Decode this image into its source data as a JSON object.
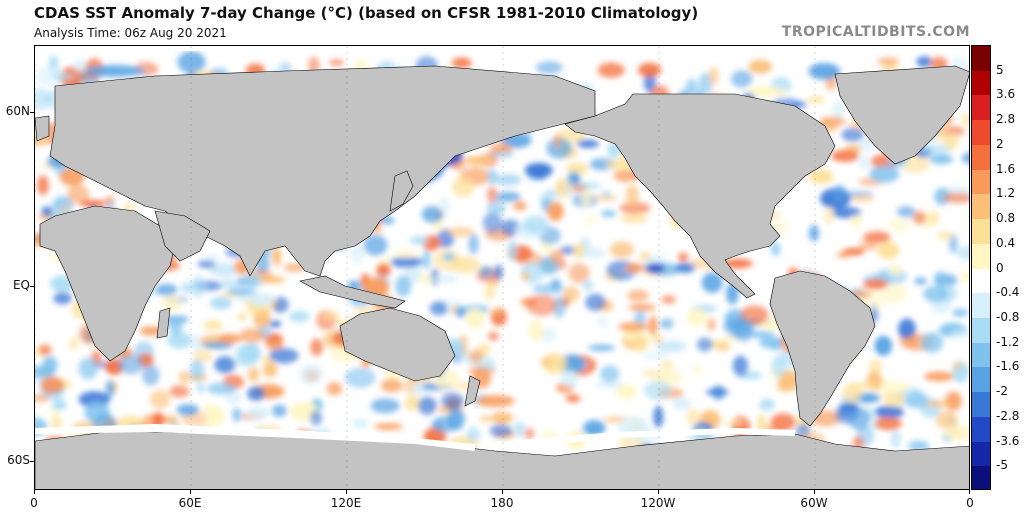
{
  "title": "CDAS SST Anomaly 7-day Change (°C) (based on CFSR 1981-2010 Climatology)",
  "subtitle": "Analysis Time: 06z Aug 20 2021",
  "credit": "TROPICALTIDBITS.COM",
  "lat_labels": [
    {
      "label": "60N",
      "lat": 60
    },
    {
      "label": "EQ",
      "lat": 0
    },
    {
      "label": "60S",
      "lat": -60
    }
  ],
  "lon_labels": [
    {
      "label": "0",
      "lon": 0
    },
    {
      "label": "60E",
      "lon": 60
    },
    {
      "label": "120E",
      "lon": 120
    },
    {
      "label": "180",
      "lon": 180
    },
    {
      "label": "120W",
      "lon": 240
    },
    {
      "label": "60W",
      "lon": 300
    },
    {
      "label": "0",
      "lon": 360
    }
  ],
  "colorbar": {
    "labels": [
      "5",
      "3.6",
      "2.8",
      "2",
      "1.6",
      "1.2",
      "0.8",
      "0.4",
      "0",
      "-0.4",
      "-0.8",
      "-1.2",
      "-1.6",
      "-2",
      "-2.8",
      "-3.6",
      "-5"
    ],
    "colors": [
      "#7a0000",
      "#b00000",
      "#d91f1f",
      "#ee4a2c",
      "#f4703e",
      "#f89a5a",
      "#fbbf78",
      "#fde097",
      "#fff6c2",
      "#ffffff",
      "#d6f0fb",
      "#aadcf5",
      "#7fc2ee",
      "#56a2e3",
      "#3a78d6",
      "#2349c7",
      "#1428a8",
      "#0a0f7a"
    ]
  },
  "colors": {
    "land": "#c3c3c3",
    "ice": "#ffffff",
    "border": "#000000"
  }
}
